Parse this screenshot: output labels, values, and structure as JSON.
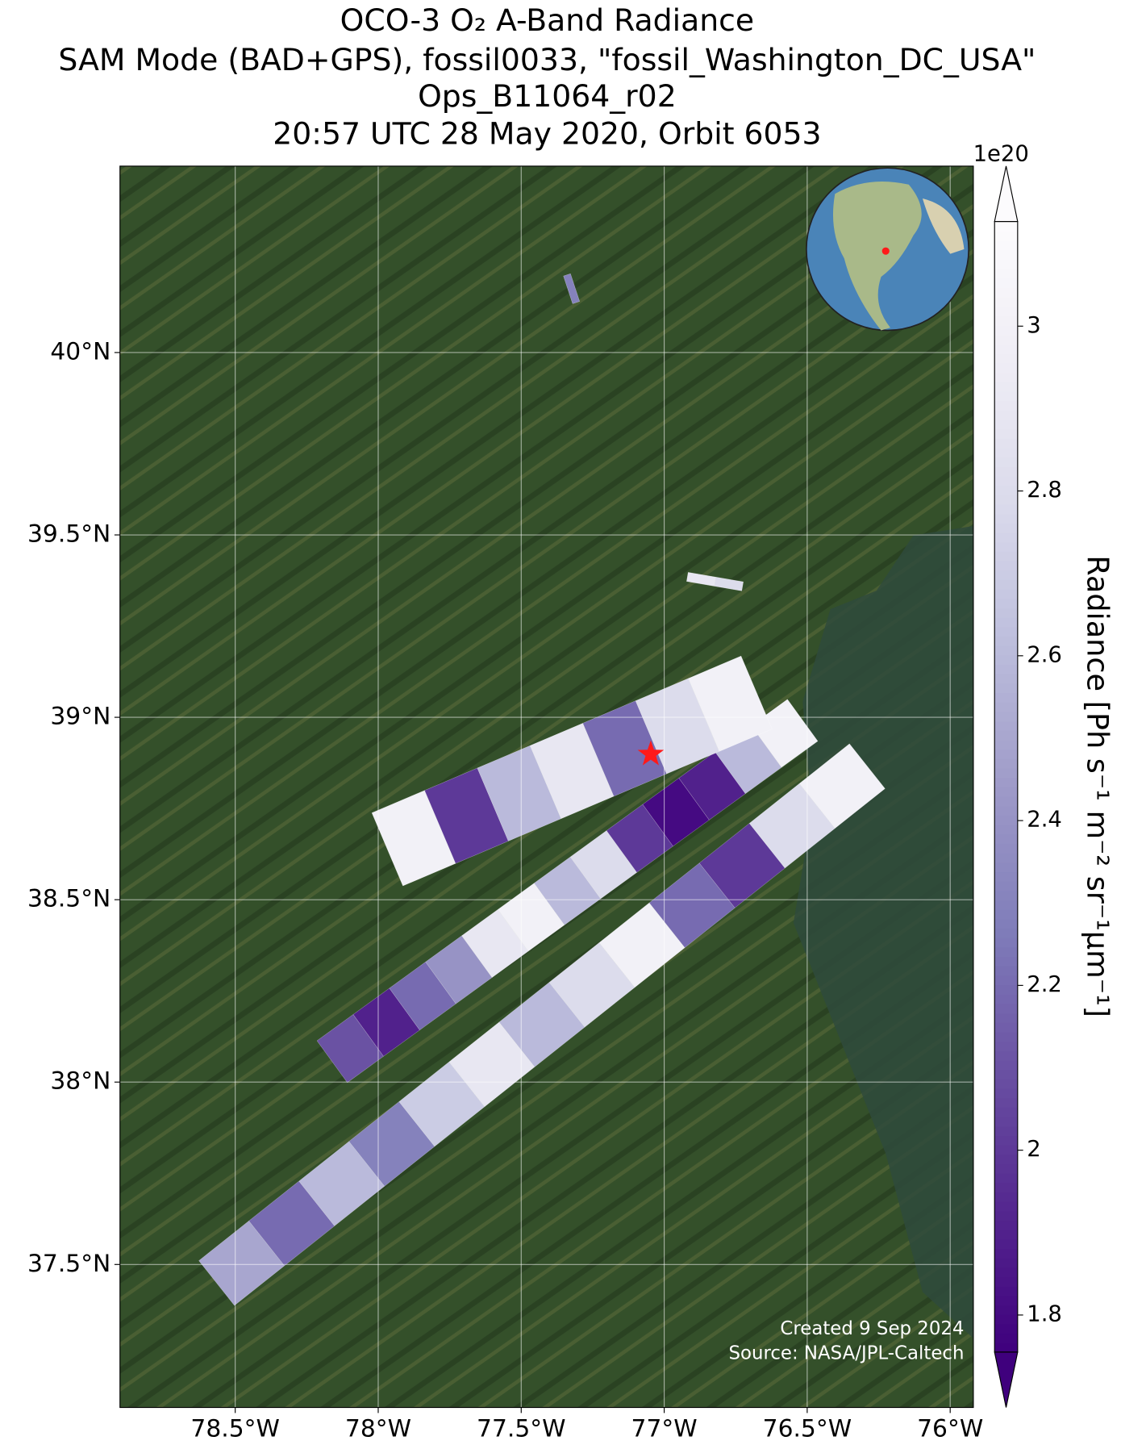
{
  "chart_data": {
    "type": "swath_map",
    "title": [
      "OCO-3 O₂ A-Band Radiance",
      "SAM Mode (BAD+GPS), fossil0033, \"fossil_Washington_DC_USA\"",
      "Ops_B11064_r02",
      "20:57 UTC 28 May 2020, Orbit 6053"
    ],
    "xlim": [
      -78.903,
      -75.919
    ],
    "ylim": [
      37.108,
      40.511
    ],
    "xticks": [
      {
        "value": -78.5,
        "label": "78.5°W"
      },
      {
        "value": -78,
        "label": "78°W"
      },
      {
        "value": -77.5,
        "label": "77.5°W"
      },
      {
        "value": -77,
        "label": "77°W"
      },
      {
        "value": -76.5,
        "label": "76.5°W"
      },
      {
        "value": -76,
        "label": "76°W"
      }
    ],
    "yticks": [
      {
        "value": 37.5,
        "label": "37.5°N"
      },
      {
        "value": 38,
        "label": "38°N"
      },
      {
        "value": 38.5,
        "label": "38.5°N"
      },
      {
        "value": 39,
        "label": "39°N"
      },
      {
        "value": 39.5,
        "label": "39.5°N"
      },
      {
        "value": 40,
        "label": "40°N"
      }
    ],
    "grid": true,
    "swaths": [
      {
        "start": [
          -78.565,
          37.449
        ],
        "end": [
          -76.29,
          38.866
        ],
        "values": [
          2.5,
          2.2,
          2.6,
          2.3,
          2.7,
          2.9,
          2.6,
          2.8,
          3.0,
          2.2,
          2.0,
          2.8,
          3.0
        ]
      },
      {
        "start": [
          -78.161,
          38.056
        ],
        "end": [
          -76.516,
          38.992
        ],
        "values": [
          2.1,
          1.9,
          2.2,
          2.4,
          2.9,
          3.0,
          2.6,
          2.8,
          2.0,
          1.8,
          1.9,
          2.6,
          3.0
        ]
      },
      {
        "start": [
          -77.968,
          38.638
        ],
        "end": [
          -76.677,
          39.068
        ],
        "values": [
          3.0,
          2.0,
          2.6,
          2.9,
          2.2,
          2.8,
          3.0
        ]
      },
      {
        "start": [
          -76.919,
          39.385
        ],
        "end": [
          -76.726,
          39.359
        ],
        "values": [
          2.9,
          2.8
        ]
      },
      {
        "start": [
          -77.34,
          40.213
        ],
        "end": [
          -77.308,
          40.137
        ],
        "values": [
          2.3
        ]
      }
    ],
    "site": [
      -77.047,
      38.899
    ],
    "colormap": [
      "#3f007d",
      "#54278f",
      "#6a51a3",
      "#807dba",
      "#9e9ac8",
      "#bcbddc",
      "#dadaeb",
      "#efedf5",
      "#fcfbfd"
    ],
    "clim": [
      1.755,
      3.127
    ],
    "cticks": [
      1.8,
      2.0,
      2.2,
      2.4,
      2.6,
      2.8,
      3.0
    ],
    "colorbar_label": "Radiance [Ph s⁻¹ m⁻² sr⁻¹μm⁻¹]",
    "colorbar_exponent": "1e20",
    "footer": [
      "Created 9 Sep 2024",
      "Source: NASA/JPL-Caltech"
    ]
  }
}
